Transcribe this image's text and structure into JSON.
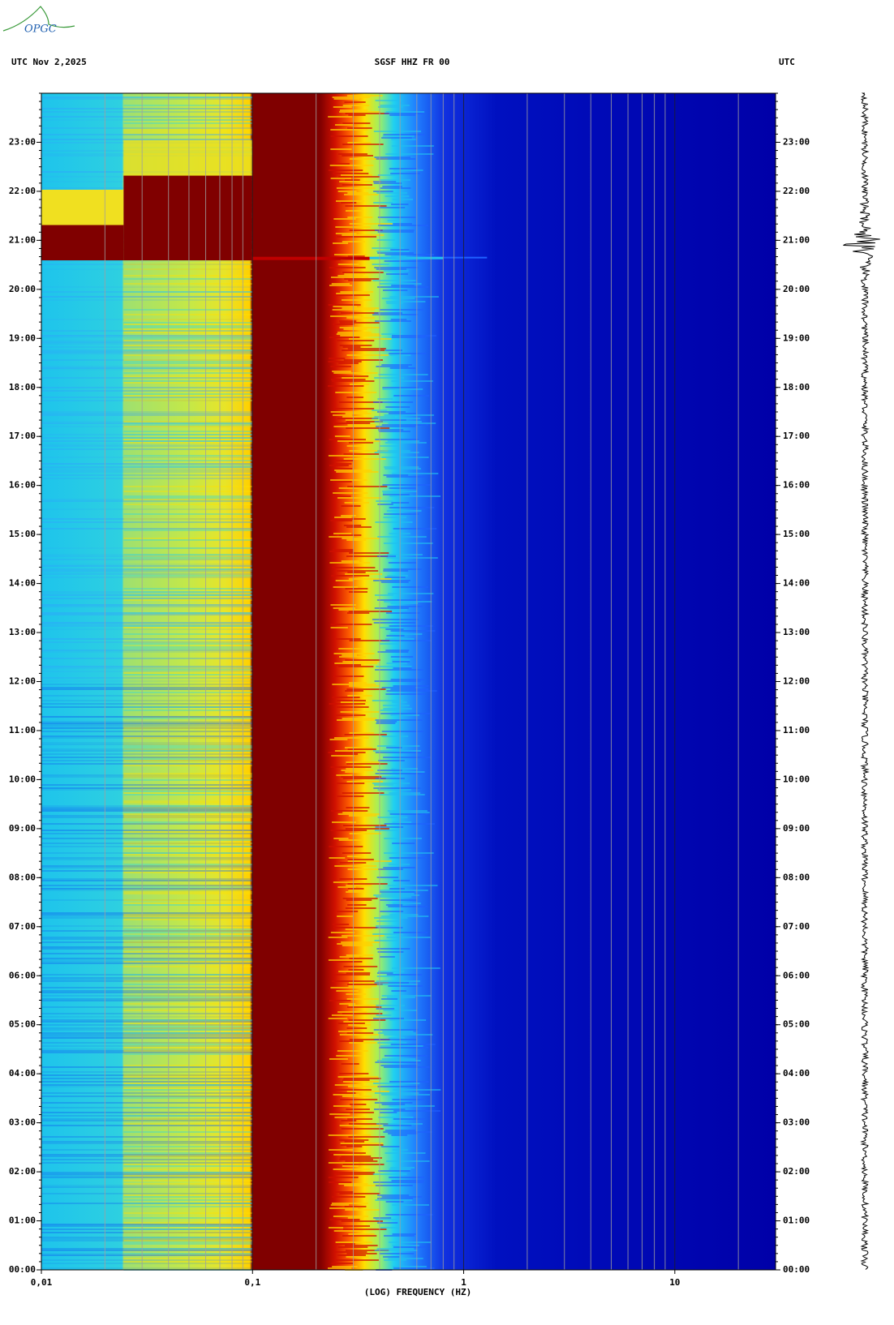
{
  "logo": "OPGC",
  "chart_data": {
    "type": "spectrogram",
    "title": "SGSF HHZ FR 00",
    "header_left": "UTC  Nov 2,2025",
    "header_right": "UTC",
    "x_label": "(LOG) FREQUENCY (HZ)",
    "xscale": "log",
    "xgrid": "minor",
    "xlim": [
      0.01,
      30
    ],
    "xticks": [
      {
        "value": 0.01,
        "label": "0,01"
      },
      {
        "value": 0.1,
        "label": "0,1"
      },
      1,
      10
    ],
    "ylim": [
      0,
      24
    ],
    "yticks": [
      {
        "value": 0,
        "label": "00:00"
      },
      {
        "value": 1,
        "label": "01:00"
      },
      {
        "value": 2,
        "label": "02:00"
      },
      {
        "value": 3,
        "label": "03:00"
      },
      {
        "value": 4,
        "label": "04:00"
      },
      {
        "value": 5,
        "label": "05:00"
      },
      {
        "value": 6,
        "label": "06:00"
      },
      {
        "value": 7,
        "label": "07:00"
      },
      {
        "value": 8,
        "label": "08:00"
      },
      {
        "value": 9,
        "label": "09:00"
      },
      {
        "value": 10,
        "label": "10:00"
      },
      {
        "value": 11,
        "label": "11:00"
      },
      {
        "value": 12,
        "label": "12:00"
      },
      {
        "value": 13,
        "label": "13:00"
      },
      {
        "value": 14,
        "label": "14:00"
      },
      {
        "value": 15,
        "label": "15:00"
      },
      {
        "value": 16,
        "label": "16:00"
      },
      {
        "value": 17,
        "label": "17:00"
      },
      {
        "value": 18,
        "label": "18:00"
      },
      {
        "value": 19,
        "label": "19:00"
      },
      {
        "value": 20,
        "label": "20:00"
      },
      {
        "value": 21,
        "label": "21:00"
      },
      {
        "value": 22,
        "label": "22:00"
      },
      {
        "value": 23,
        "label": "23:00"
      }
    ]
  }
}
